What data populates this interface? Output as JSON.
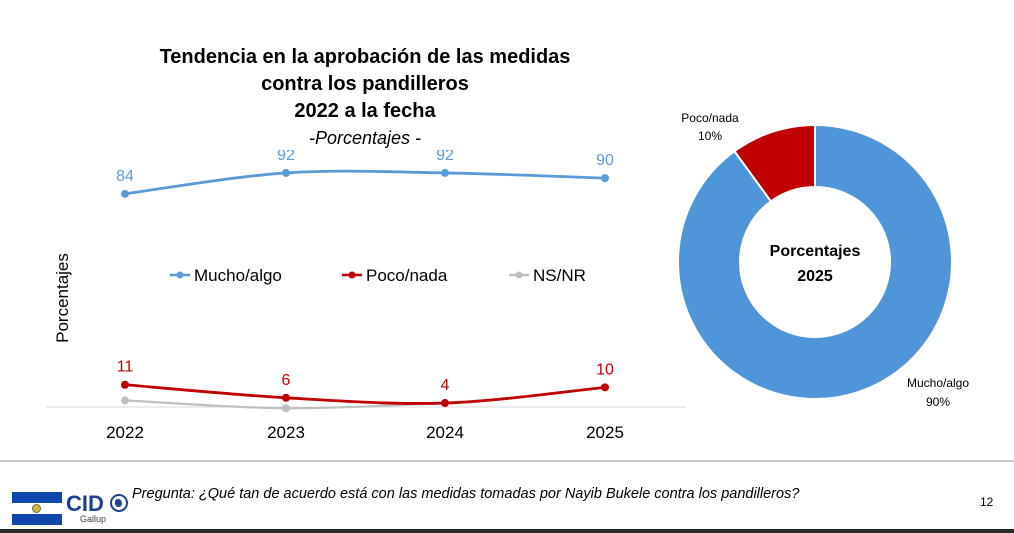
{
  "title": {
    "line1": "Tendencia en la aprobación de las medidas",
    "line2": "contra los pandilleros",
    "line3": "2022 a la fecha",
    "subtitle": "-Porcentajes -"
  },
  "chart_data": [
    {
      "type": "line",
      "ylabel": "Porcentajes",
      "x": [
        "2022",
        "2023",
        "2024",
        "2025"
      ],
      "ylim": [
        0,
        100
      ],
      "grid": false,
      "legend": "center",
      "series": [
        {
          "name": "Mucho/algo",
          "values": [
            84,
            92,
            92,
            90
          ],
          "labels": [
            "84",
            "92",
            "92",
            "90"
          ],
          "color": "#5b9bd5"
        },
        {
          "name": "Poco/nada",
          "values": [
            11,
            6,
            4,
            10
          ],
          "labels": [
            "11",
            "6",
            "4",
            "10"
          ],
          "color": "#c00000"
        },
        {
          "name": "NS/NR",
          "values": [
            5,
            2,
            4,
            null
          ],
          "color": "#bfbfbf"
        }
      ]
    },
    {
      "type": "pie",
      "title": "Porcentajes",
      "subtitle": "2025",
      "slices": [
        {
          "name": "Mucho/algo",
          "value": 90,
          "label": "90%",
          "color": "#4e95d9"
        },
        {
          "name": "Poco/nada",
          "value": 10,
          "label": "10%",
          "color": "#c00000"
        }
      ]
    }
  ],
  "footer": {
    "question": "Pregunta: ¿Qué tan de acuerdo está con las medidas tomadas por Nayib Bukele contra los pandilleros?",
    "page": "12",
    "logo_text": "CID",
    "logo_subtext": "Gallup"
  }
}
